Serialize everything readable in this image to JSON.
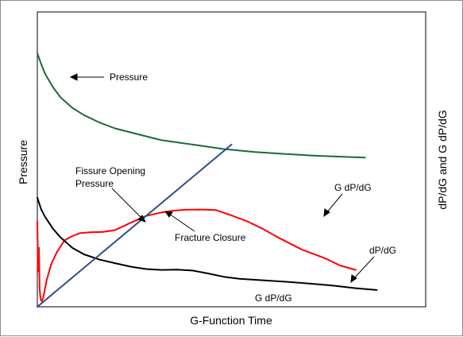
{
  "chart_data": {
    "type": "line",
    "title": "",
    "xlabel": "G-Function Time",
    "ylabel_left": "Pressure",
    "ylabel_right": "dP/dG and G dP/dG",
    "grid": false,
    "series": [
      {
        "name": "Pressure",
        "color": "#1a6b3a",
        "x": [
          0,
          4,
          10,
          20,
          30,
          45,
          60,
          80,
          100,
          130,
          160,
          200,
          240,
          280,
          320,
          360,
          400,
          422
        ],
        "y": [
          0.86,
          0.83,
          0.79,
          0.745,
          0.71,
          0.675,
          0.65,
          0.625,
          0.605,
          0.585,
          0.565,
          0.55,
          0.535,
          0.525,
          0.518,
          0.512,
          0.508,
          0.506
        ]
      },
      {
        "name": "G dP/dG",
        "color": "#ff0000",
        "x": [
          0,
          1,
          2,
          3,
          4,
          5,
          6,
          8,
          12,
          18,
          25,
          35,
          45,
          55,
          70,
          85,
          100,
          120,
          140,
          160,
          175,
          190,
          210,
          230,
          250,
          270,
          290,
          310,
          340,
          370,
          390,
          410
        ],
        "y": [
          0.29,
          0.12,
          0.2,
          0.06,
          0.03,
          0.02,
          0.02,
          0.035,
          0.09,
          0.145,
          0.185,
          0.225,
          0.24,
          0.25,
          0.253,
          0.254,
          0.26,
          0.285,
          0.308,
          0.32,
          0.326,
          0.329,
          0.33,
          0.328,
          0.31,
          0.29,
          0.265,
          0.235,
          0.195,
          0.165,
          0.14,
          0.125
        ]
      },
      {
        "name": "dP/dG",
        "color": "#000000",
        "x": [
          0,
          5,
          10,
          20,
          30,
          45,
          60,
          80,
          100,
          120,
          140,
          160,
          180,
          200,
          220,
          240,
          260,
          290,
          320,
          350,
          380,
          410,
          437
        ],
        "y": [
          0.37,
          0.33,
          0.305,
          0.265,
          0.235,
          0.2,
          0.178,
          0.16,
          0.148,
          0.136,
          0.128,
          0.125,
          0.126,
          0.123,
          0.113,
          0.102,
          0.095,
          0.09,
          0.085,
          0.079,
          0.072,
          0.063,
          0.057
        ]
      },
      {
        "name": "",
        "color": "#2b4b8c",
        "x": [
          0,
          250
        ],
        "y": [
          0,
          0.55
        ]
      }
    ],
    "annotations": [
      {
        "id": "pressure",
        "text": "Pressure"
      },
      {
        "id": "fissure_line1",
        "text": "Fissure Opening"
      },
      {
        "id": "fissure_line2",
        "text": "Pressure"
      },
      {
        "id": "fracture",
        "text": "Fracture Closure"
      },
      {
        "id": "gdpdg_upper",
        "text": "G dP/dG"
      },
      {
        "id": "dpdg",
        "text": "dP/dG"
      },
      {
        "id": "gdpdg_lower",
        "text": "G dP/dG"
      }
    ],
    "xlim": [
      0,
      500
    ],
    "ylim": [
      0,
      1
    ]
  }
}
